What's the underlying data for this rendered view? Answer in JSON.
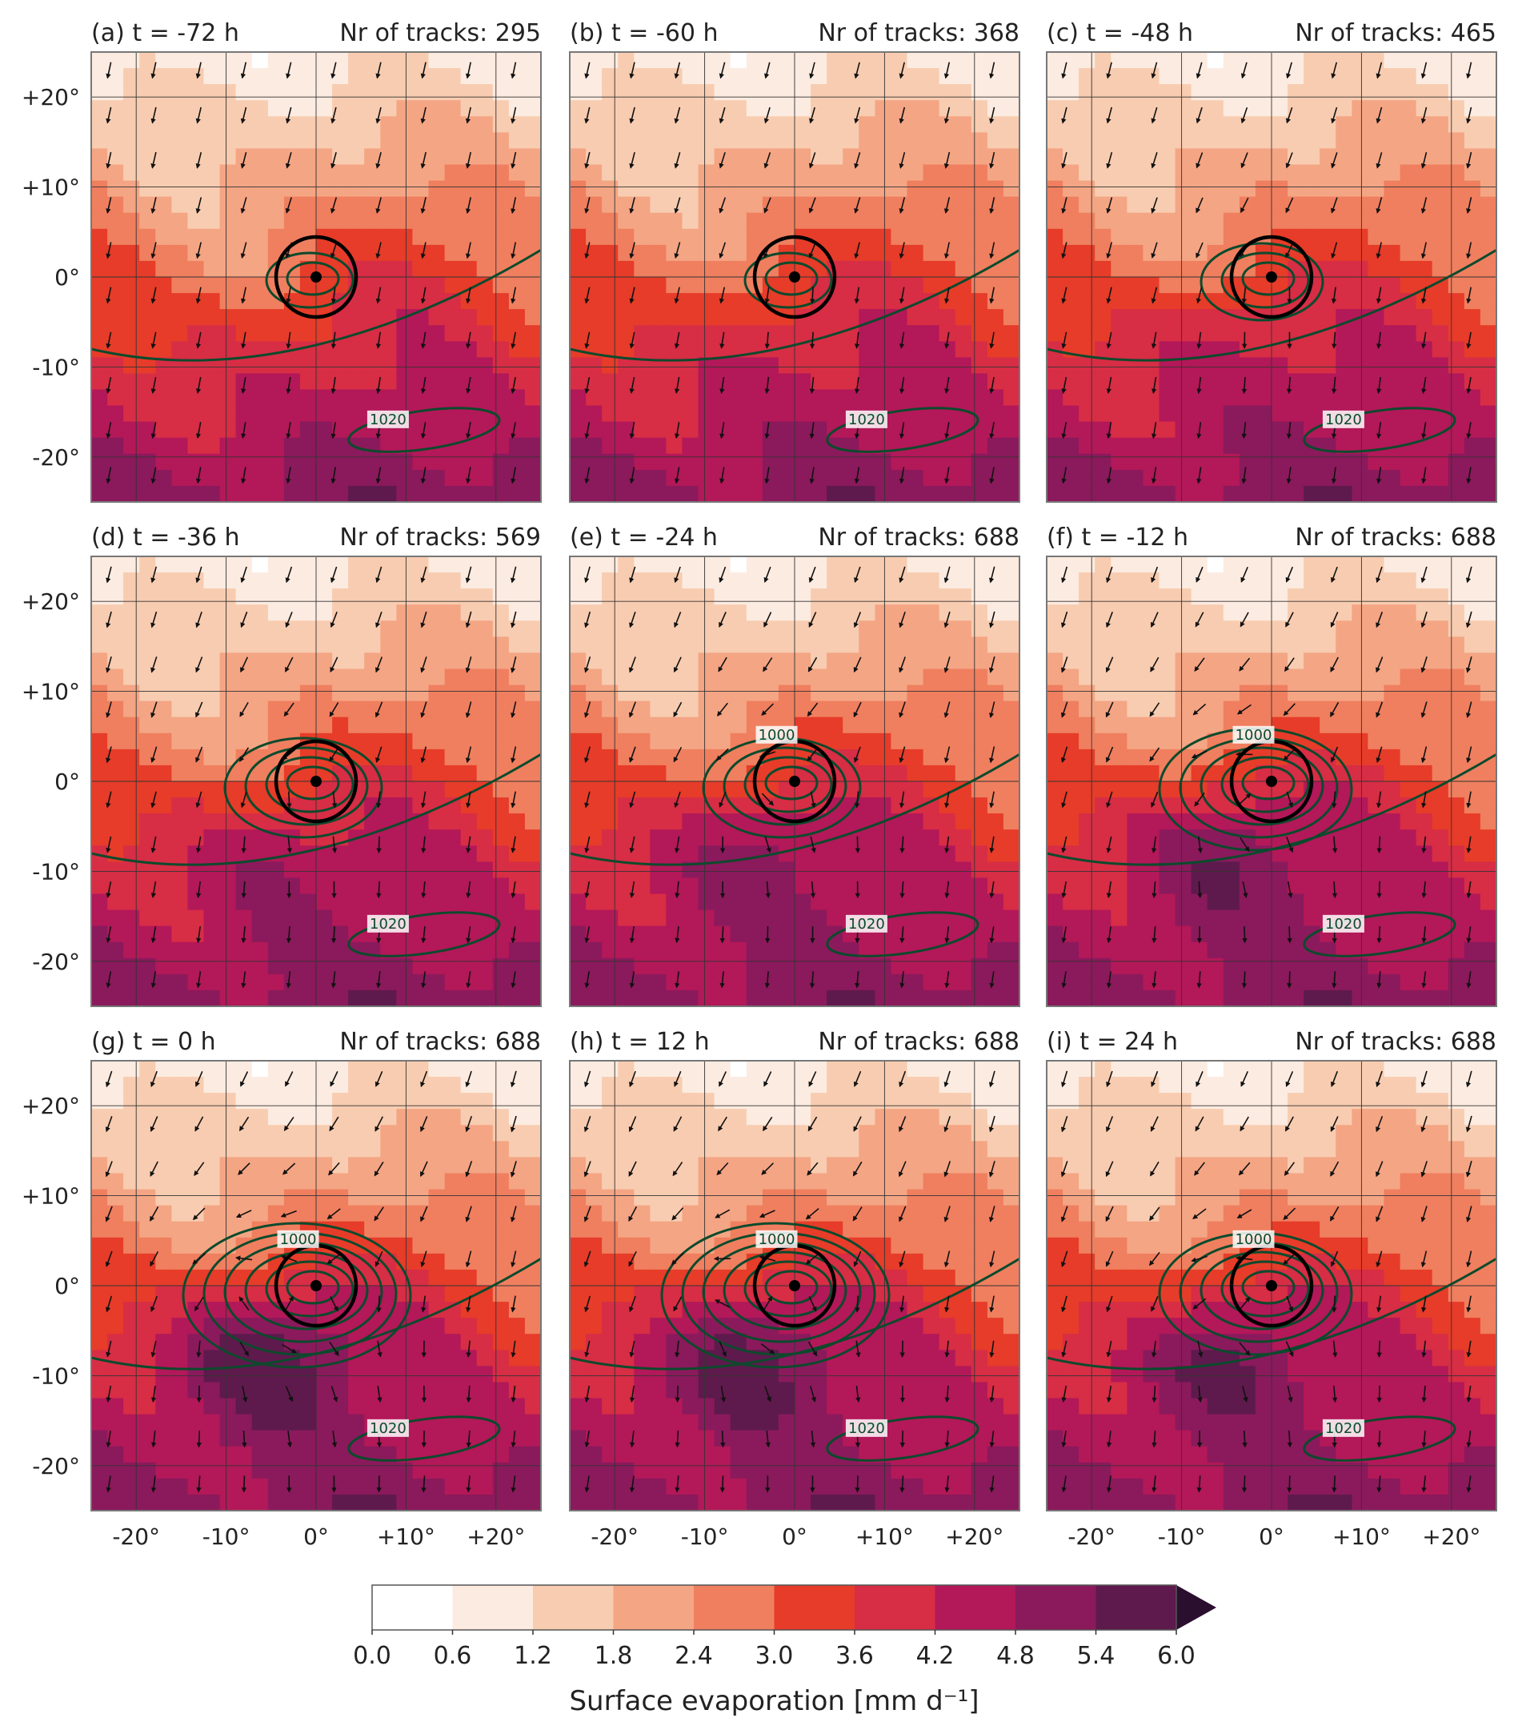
{
  "panels": [
    {
      "title": "(a) t = -72 h",
      "tracks_label": "Nr of tracks: 295",
      "isobar_labels": [
        "1020"
      ],
      "intensity": 0.15
    },
    {
      "title": "(b) t = -60 h",
      "tracks_label": "Nr of tracks: 368",
      "isobar_labels": [
        "1020"
      ],
      "intensity": 0.25
    },
    {
      "title": "(c) t = -48 h",
      "tracks_label": "Nr of tracks: 465",
      "isobar_labels": [
        "1020"
      ],
      "intensity": 0.35
    },
    {
      "title": "(d) t = -36 h",
      "tracks_label": "Nr of tracks: 569",
      "isobar_labels": [
        "1020"
      ],
      "intensity": 0.5
    },
    {
      "title": "(e) t = -24 h",
      "tracks_label": "Nr of tracks: 688",
      "isobar_labels": [
        "1000",
        "1020"
      ],
      "intensity": 0.65
    },
    {
      "title": "(f) t = -12 h",
      "tracks_label": "Nr of tracks: 688",
      "isobar_labels": [
        "1000",
        "1020"
      ],
      "intensity": 0.8
    },
    {
      "title": "(g) t = 0 h",
      "tracks_label": "Nr of tracks: 688",
      "isobar_labels": [
        "1000",
        "1020"
      ],
      "intensity": 1.0
    },
    {
      "title": "(h) t = 12 h",
      "tracks_label": "Nr of tracks: 688",
      "isobar_labels": [
        "1000",
        "1020"
      ],
      "intensity": 0.95
    },
    {
      "title": "(i) t = 24 h",
      "tracks_label": "Nr of tracks: 688",
      "isobar_labels": [
        "1000",
        "1020"
      ],
      "intensity": 0.85
    }
  ],
  "axes": {
    "y_ticks": [
      "+20°",
      "+10°",
      "0°",
      "-10°",
      "-20°"
    ],
    "x_ticks": [
      "-20°",
      "-10°",
      "0°",
      "+10°",
      "+20°"
    ]
  },
  "colorbar": {
    "ticks": [
      "0.0",
      "0.6",
      "1.2",
      "1.8",
      "2.4",
      "3.0",
      "3.6",
      "4.2",
      "4.8",
      "5.4",
      "6.0"
    ],
    "colors": [
      "#ffffff",
      "#fcebe0",
      "#f8ccb0",
      "#f4a584",
      "#ef7f5f",
      "#e63c29",
      "#d72d45",
      "#b31859",
      "#8a1a5c",
      "#5e1a4c"
    ],
    "extend_color": "#2b0f2f",
    "label": "Surface evaporation [mm d⁻¹]"
  },
  "colors": {
    "isobar": "#0c4a2c",
    "circle": "#000000",
    "arrow": "#111111",
    "grid": "#333333"
  }
}
